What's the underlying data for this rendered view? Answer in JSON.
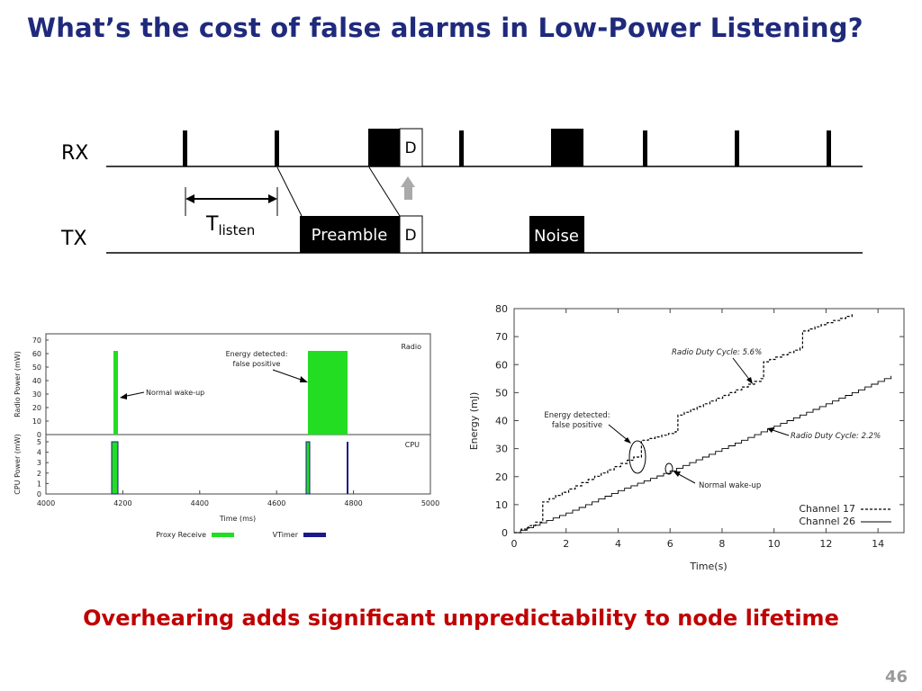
{
  "slide": {
    "title": "What’s the cost of false alarms in Low-Power Listening?",
    "footer": "Overhearing adds significant unpredictability to node lifetime",
    "page_number": "46"
  },
  "timing": {
    "rx_label": "RX",
    "tx_label": "TX",
    "t_main": "T",
    "t_sub": "listen",
    "preamble": "Preamble",
    "d_label": "D",
    "noise": "Noise"
  },
  "power_chart": {
    "type": "bar",
    "radio_label": "Radio",
    "cpu_label": "CPU",
    "ylabel_top": "Radio Power (mW)",
    "ylabel_bottom": "CPU Power (mW)",
    "xlabel": "Time (ms)",
    "xticks": [
      "4000",
      "4200",
      "4400",
      "4600",
      "4800",
      "5000"
    ],
    "yticks_top": [
      "0",
      "10",
      "20",
      "30",
      "40",
      "50",
      "60",
      "70"
    ],
    "yticks_bottom": [
      "0",
      "1",
      "2",
      "3",
      "4",
      "5"
    ],
    "ann_false_line1": "Energy detected:",
    "ann_false_line2": "false positive",
    "ann_normal": "Normal wake-up",
    "legend_proxy": "Proxy Receive",
    "legend_vtimer": "VTimer",
    "colors": {
      "proxy": "#22dd22",
      "vtimer": "#1a1a8a"
    }
  },
  "energy_chart": {
    "type": "line",
    "xlabel": "Time(s)",
    "ylabel": "Energy (mJ)",
    "xticks": [
      "0",
      "2",
      "4",
      "6",
      "8",
      "10",
      "12",
      "14"
    ],
    "yticks": [
      "0",
      "10",
      "20",
      "30",
      "40",
      "50",
      "60",
      "70",
      "80"
    ],
    "xlim": [
      0,
      15
    ],
    "ylim": [
      0,
      80
    ],
    "ann_duty17": "Radio Duty Cycle: 5.6%",
    "ann_duty26": "Radio Duty Cycle: 2.2%",
    "ann_false_line1": "Energy detected:",
    "ann_false_line2": "false positive",
    "ann_normal": "Normal wake-up",
    "legend_ch17": "Channel 17",
    "legend_ch26": "Channel 26"
  },
  "chart_data": [
    {
      "type": "line",
      "xlabel": "Time(s)",
      "ylabel": "Energy (mJ)",
      "xlim": [
        0,
        15
      ],
      "ylim": [
        0,
        80
      ],
      "series": [
        {
          "name": "Channel 17",
          "x": [
            0,
            1.1,
            1.1,
            4.6,
            4.9,
            6.2,
            6.3,
            9.5,
            9.6,
            11.0,
            11.1,
            13.0
          ],
          "y": [
            0,
            5,
            11,
            27,
            33,
            36,
            42,
            55,
            61,
            66,
            72,
            78
          ]
        },
        {
          "name": "Channel 26",
          "x": [
            0,
            2,
            4,
            6,
            8,
            10,
            12,
            14.5
          ],
          "y": [
            0,
            7,
            15,
            22,
            30,
            38,
            46,
            56
          ]
        }
      ]
    },
    {
      "type": "bar",
      "xlabel": "Time (ms)",
      "xlim": [
        4000,
        5000
      ],
      "series": [
        {
          "name": "Proxy Receive",
          "radio_intervals": [
            [
              4173,
              4184
            ],
            [
              4675,
              4780
            ]
          ],
          "radio_value": 62,
          "cpu_intervals": [
            [
              4170,
              4180
            ],
            [
              4672,
              4680
            ]
          ],
          "cpu_value": 5
        },
        {
          "name": "VTimer",
          "cpu_intervals": [
            [
              4170,
              4172
            ],
            [
              4677,
              4679
            ],
            [
              4778,
              4780
            ]
          ],
          "cpu_value": 5
        }
      ]
    }
  ]
}
